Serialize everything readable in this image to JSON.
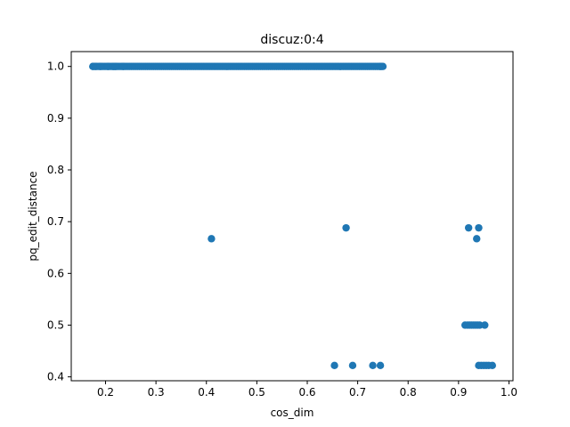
{
  "chart_data": {
    "type": "scatter",
    "title": "discuz:0:4",
    "xlabel": "cos_dim",
    "ylabel": "pq_edit_distance",
    "xlim": [
      0.132,
      1.008
    ],
    "ylim": [
      0.3925,
      1.0287
    ],
    "xticks": [
      "0.2",
      "0.3",
      "0.4",
      "0.5",
      "0.6",
      "0.7",
      "0.8",
      "0.9",
      "1.0"
    ],
    "yticks": [
      "0.4",
      "0.5",
      "0.6",
      "0.7",
      "0.8",
      "0.9",
      "1.0"
    ],
    "marker_color": "#1f77b4",
    "grid": false,
    "dense_band": {
      "y": 1.0,
      "x_from": 0.175,
      "x_to": 0.75,
      "step": 0.004
    },
    "points": [
      {
        "x": 0.175,
        "y": 1.0
      },
      {
        "x": 0.18,
        "y": 1.0
      },
      {
        "x": 0.19,
        "y": 1.0
      },
      {
        "x": 0.205,
        "y": 1.0
      },
      {
        "x": 0.215,
        "y": 1.0
      },
      {
        "x": 0.22,
        "y": 1.0
      },
      {
        "x": 0.235,
        "y": 1.0
      },
      {
        "x": 0.745,
        "y": 1.0
      },
      {
        "x": 0.75,
        "y": 1.0
      },
      {
        "x": 0.41,
        "y": 0.667
      },
      {
        "x": 0.677,
        "y": 0.688
      },
      {
        "x": 0.92,
        "y": 0.688
      },
      {
        "x": 0.94,
        "y": 0.688
      },
      {
        "x": 0.936,
        "y": 0.667
      },
      {
        "x": 0.913,
        "y": 0.5
      },
      {
        "x": 0.918,
        "y": 0.5
      },
      {
        "x": 0.922,
        "y": 0.5
      },
      {
        "x": 0.926,
        "y": 0.5
      },
      {
        "x": 0.93,
        "y": 0.5
      },
      {
        "x": 0.934,
        "y": 0.5
      },
      {
        "x": 0.938,
        "y": 0.5
      },
      {
        "x": 0.942,
        "y": 0.5
      },
      {
        "x": 0.952,
        "y": 0.5
      },
      {
        "x": 0.654,
        "y": 0.422
      },
      {
        "x": 0.69,
        "y": 0.422
      },
      {
        "x": 0.73,
        "y": 0.422
      },
      {
        "x": 0.745,
        "y": 0.422
      },
      {
        "x": 0.94,
        "y": 0.422
      },
      {
        "x": 0.945,
        "y": 0.422
      },
      {
        "x": 0.95,
        "y": 0.422
      },
      {
        "x": 0.955,
        "y": 0.422
      },
      {
        "x": 0.96,
        "y": 0.422
      },
      {
        "x": 0.967,
        "y": 0.422
      }
    ]
  }
}
